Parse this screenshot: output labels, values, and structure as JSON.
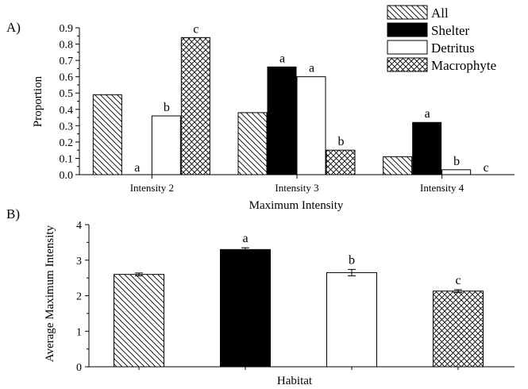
{
  "chart_data": [
    {
      "type": "bar",
      "panel_label": "A)",
      "categories": [
        "Intensity 2",
        "Intensity 3",
        "Intensity 4"
      ],
      "series": [
        {
          "name": "All",
          "values": [
            0.49,
            0.38,
            0.11
          ],
          "fill": "hatch-diagonal",
          "sig": [
            "",
            "",
            ""
          ]
        },
        {
          "name": "Shelter",
          "values": [
            0.0,
            0.66,
            0.32
          ],
          "fill": "solid-black",
          "sig": [
            "a",
            "a",
            "a"
          ]
        },
        {
          "name": "Detritus",
          "values": [
            0.36,
            0.6,
            0.03
          ],
          "fill": "white",
          "sig": [
            "b",
            "a",
            "b"
          ]
        },
        {
          "name": "Macrophyte",
          "values": [
            0.84,
            0.15,
            0.0
          ],
          "fill": "hatch-cross",
          "sig": [
            "c",
            "b",
            "c"
          ]
        }
      ],
      "xlabel": "Maximum Intensity",
      "ylabel": "Proportion",
      "ylim": [
        0,
        0.9
      ],
      "yticks": [
        "0.0",
        "0.1",
        "0.2",
        "0.3",
        "0.4",
        "0.5",
        "0.6",
        "0.7",
        "0.8",
        "0.9"
      ],
      "legend_position": "top-right",
      "grid": false
    },
    {
      "type": "bar",
      "panel_label": "B)",
      "categories": [
        "All",
        "Shelter",
        "Detritus",
        "Macrophyte"
      ],
      "values": [
        2.6,
        3.3,
        2.65,
        2.13
      ],
      "error": [
        0.04,
        0.05,
        0.09,
        0.04
      ],
      "fills": [
        "hatch-diagonal",
        "solid-black",
        "white",
        "hatch-cross"
      ],
      "sig": [
        "",
        "a",
        "b",
        "c"
      ],
      "xlabel": "Habitat",
      "ylabel": "Average Maximum Intensity",
      "ylim": [
        0,
        4
      ],
      "yticks": [
        "0",
        "1",
        "2",
        "3",
        "4"
      ],
      "grid": false
    }
  ]
}
